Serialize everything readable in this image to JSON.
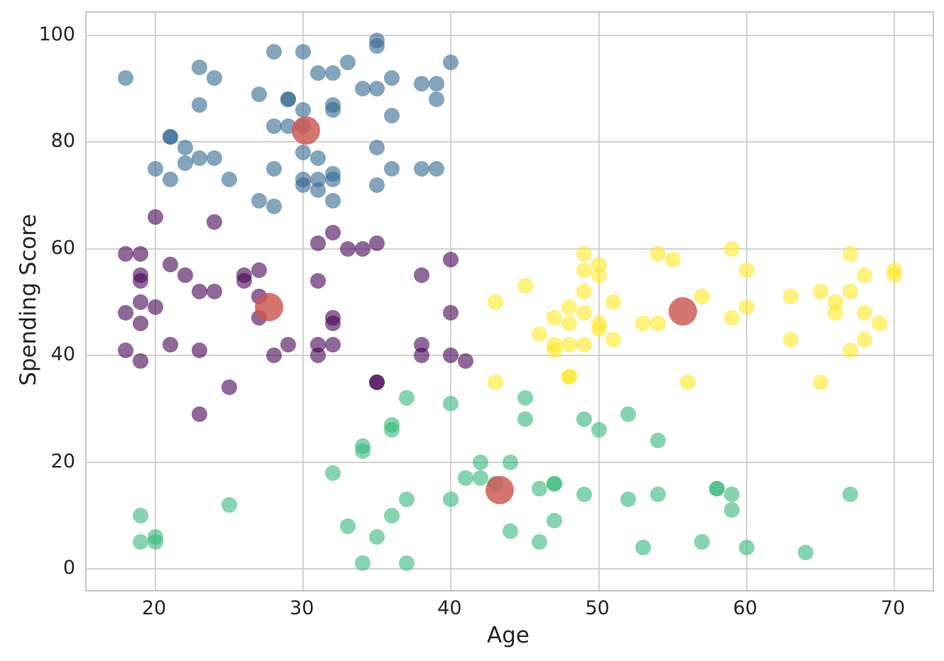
{
  "figure": {
    "background": "#ffffff",
    "grid_color": "#d2d2d2",
    "border_color": "#c6c6c6",
    "text_color": "#262626"
  },
  "chart_data": {
    "type": "scatter",
    "title": "",
    "xlabel": "Age",
    "ylabel": "Spending Score",
    "xlim": [
      15.34,
      72.59
    ],
    "ylim": [
      -4.0,
      104.25
    ],
    "xticks": [
      20,
      30,
      40,
      50,
      60,
      70
    ],
    "yticks": [
      0,
      20,
      40,
      60,
      80,
      100
    ],
    "grid": true,
    "legend": false,
    "description": "K-means style clustering of customers: Age vs Spending Score with 4 clusters and red cluster centroids",
    "series": [
      {
        "name": "cluster-blue",
        "color": "rgba(49,104,142,0.6)",
        "radius": 11,
        "points": [
          [
            18,
            92
          ],
          [
            20,
            75
          ],
          [
            21,
            81
          ],
          [
            21,
            81
          ],
          [
            21,
            73
          ],
          [
            22,
            79
          ],
          [
            22,
            76
          ],
          [
            23,
            94
          ],
          [
            23,
            87
          ],
          [
            23,
            77
          ],
          [
            24,
            92
          ],
          [
            24,
            77
          ],
          [
            25,
            73
          ],
          [
            27,
            89
          ],
          [
            27,
            69
          ],
          [
            28,
            97
          ],
          [
            28,
            83
          ],
          [
            28,
            75
          ],
          [
            28,
            68
          ],
          [
            29,
            88
          ],
          [
            29,
            88
          ],
          [
            29,
            83
          ],
          [
            30,
            97
          ],
          [
            30,
            86
          ],
          [
            30,
            83
          ],
          [
            30,
            78
          ],
          [
            30,
            73
          ],
          [
            30,
            72
          ],
          [
            31,
            93
          ],
          [
            31,
            77
          ],
          [
            31,
            73
          ],
          [
            31,
            71
          ],
          [
            32,
            93
          ],
          [
            32,
            87
          ],
          [
            32,
            86
          ],
          [
            32,
            74
          ],
          [
            32,
            73
          ],
          [
            32,
            69
          ],
          [
            33,
            95
          ],
          [
            34,
            90
          ],
          [
            35,
            99
          ],
          [
            35,
            98
          ],
          [
            35,
            90
          ],
          [
            35,
            79
          ],
          [
            35,
            72
          ],
          [
            36,
            92
          ],
          [
            36,
            85
          ],
          [
            36,
            75
          ],
          [
            38,
            91
          ],
          [
            38,
            75
          ],
          [
            39,
            91
          ],
          [
            39,
            88
          ],
          [
            39,
            75
          ],
          [
            40,
            95
          ]
        ]
      },
      {
        "name": "cluster-purple",
        "color": "rgba(68,1,84,0.6)",
        "radius": 11,
        "points": [
          [
            18,
            59
          ],
          [
            18,
            48
          ],
          [
            18,
            41
          ],
          [
            19,
            59
          ],
          [
            19,
            55
          ],
          [
            19,
            54
          ],
          [
            19,
            50
          ],
          [
            19,
            46
          ],
          [
            19,
            39
          ],
          [
            20,
            66
          ],
          [
            20,
            49
          ],
          [
            21,
            57
          ],
          [
            21,
            42
          ],
          [
            22,
            55
          ],
          [
            23,
            52
          ],
          [
            23,
            41
          ],
          [
            23,
            29
          ],
          [
            24,
            65
          ],
          [
            24,
            52
          ],
          [
            25,
            34
          ],
          [
            26,
            55
          ],
          [
            26,
            54
          ],
          [
            27,
            56
          ],
          [
            27,
            51
          ],
          [
            27,
            47
          ],
          [
            28,
            40
          ],
          [
            29,
            42
          ],
          [
            31,
            61
          ],
          [
            31,
            54
          ],
          [
            31,
            42
          ],
          [
            31,
            40
          ],
          [
            32,
            63
          ],
          [
            32,
            47
          ],
          [
            32,
            46
          ],
          [
            32,
            42
          ],
          [
            33,
            60
          ],
          [
            34,
            60
          ],
          [
            35,
            61
          ],
          [
            35,
            35
          ],
          [
            35,
            35
          ],
          [
            38,
            55
          ],
          [
            38,
            42
          ],
          [
            38,
            40
          ],
          [
            40,
            58
          ],
          [
            40,
            48
          ],
          [
            40,
            40
          ],
          [
            41,
            39
          ]
        ]
      },
      {
        "name": "cluster-yellow",
        "color": "rgba(253,231,37,0.6)",
        "radius": 11,
        "points": [
          [
            43,
            50
          ],
          [
            43,
            35
          ],
          [
            45,
            53
          ],
          [
            46,
            44
          ],
          [
            47,
            47
          ],
          [
            47,
            42
          ],
          [
            47,
            41
          ],
          [
            48,
            49
          ],
          [
            48,
            46
          ],
          [
            48,
            42
          ],
          [
            48,
            36
          ],
          [
            48,
            36
          ],
          [
            49,
            59
          ],
          [
            49,
            56
          ],
          [
            49,
            52
          ],
          [
            49,
            48
          ],
          [
            49,
            42
          ],
          [
            50,
            57
          ],
          [
            50,
            55
          ],
          [
            50,
            46
          ],
          [
            50,
            45
          ],
          [
            51,
            50
          ],
          [
            51,
            43
          ],
          [
            53,
            46
          ],
          [
            54,
            59
          ],
          [
            54,
            46
          ],
          [
            55,
            58
          ],
          [
            56,
            35
          ],
          [
            57,
            51
          ],
          [
            59,
            60
          ],
          [
            59,
            47
          ],
          [
            60,
            56
          ],
          [
            60,
            49
          ],
          [
            63,
            51
          ],
          [
            63,
            43
          ],
          [
            65,
            52
          ],
          [
            65,
            35
          ],
          [
            66,
            50
          ],
          [
            66,
            48
          ],
          [
            67,
            59
          ],
          [
            67,
            52
          ],
          [
            67,
            41
          ],
          [
            68,
            55
          ],
          [
            68,
            48
          ],
          [
            68,
            43
          ],
          [
            69,
            46
          ],
          [
            70,
            56
          ],
          [
            70,
            55
          ]
        ]
      },
      {
        "name": "cluster-green",
        "color": "rgba(53,183,121,0.6)",
        "radius": 11,
        "points": [
          [
            19,
            10
          ],
          [
            19,
            5
          ],
          [
            20,
            6
          ],
          [
            20,
            5
          ],
          [
            25,
            12
          ],
          [
            32,
            18
          ],
          [
            33,
            8
          ],
          [
            34,
            23
          ],
          [
            34,
            22
          ],
          [
            34,
            1
          ],
          [
            35,
            6
          ],
          [
            36,
            27
          ],
          [
            36,
            26
          ],
          [
            36,
            10
          ],
          [
            37,
            32
          ],
          [
            37,
            13
          ],
          [
            37,
            1
          ],
          [
            40,
            31
          ],
          [
            40,
            13
          ],
          [
            41,
            17
          ],
          [
            42,
            20
          ],
          [
            42,
            17
          ],
          [
            43,
            16
          ],
          [
            44,
            20
          ],
          [
            44,
            7
          ],
          [
            45,
            32
          ],
          [
            45,
            28
          ],
          [
            46,
            15
          ],
          [
            46,
            5
          ],
          [
            47,
            16
          ],
          [
            47,
            16
          ],
          [
            47,
            9
          ],
          [
            49,
            28
          ],
          [
            49,
            14
          ],
          [
            50,
            26
          ],
          [
            52,
            29
          ],
          [
            52,
            13
          ],
          [
            53,
            4
          ],
          [
            54,
            24
          ],
          [
            54,
            14
          ],
          [
            57,
            5
          ],
          [
            58,
            15
          ],
          [
            58,
            15
          ],
          [
            59,
            14
          ],
          [
            59,
            11
          ],
          [
            60,
            4
          ],
          [
            64,
            3
          ],
          [
            67,
            14
          ]
        ]
      },
      {
        "name": "centroids",
        "color": "rgba(205,85,80,0.82)",
        "radius": 20,
        "points": [
          [
            30.2,
            82.2
          ],
          [
            27.7,
            49.1
          ],
          [
            43.3,
            14.8
          ],
          [
            55.7,
            48.2
          ]
        ]
      }
    ]
  }
}
